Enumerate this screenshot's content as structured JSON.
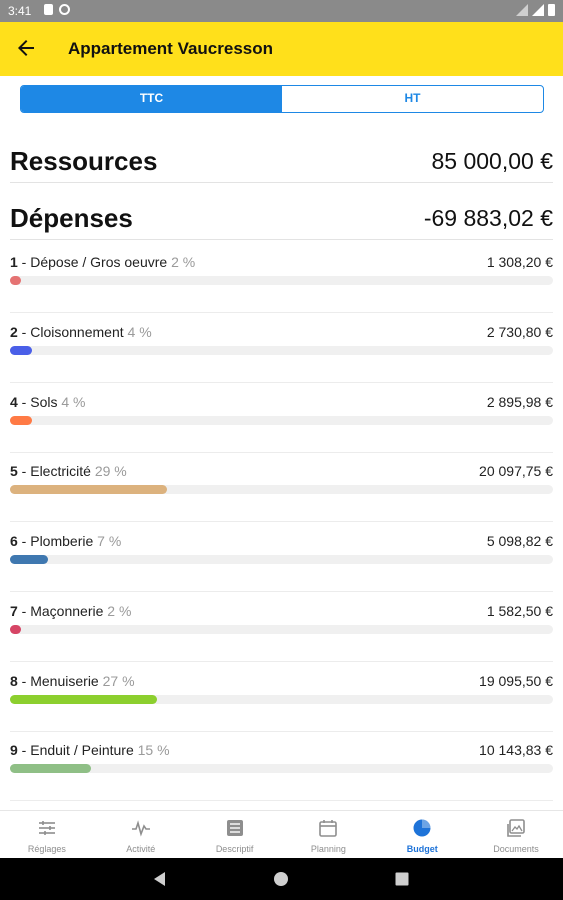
{
  "status_bar": {
    "time": "3:41"
  },
  "app_bar": {
    "title": "Appartement Vaucresson"
  },
  "tax_toggle": {
    "options": [
      "TTC",
      "HT"
    ],
    "selected": "TTC"
  },
  "summary": {
    "resources_label": "Ressources",
    "resources_value": "85 000,00 €",
    "expenses_label": "Dépenses",
    "expenses_value": "-69 883,02 €"
  },
  "categories": [
    {
      "num": "1",
      "name": " - Dépose / Gros oeuvre ",
      "pct": "2 %",
      "pct_value": 2,
      "amount": "1 308,20 €",
      "color": "#e57373"
    },
    {
      "num": "2",
      "name": " - Cloisonnement ",
      "pct": "4 %",
      "pct_value": 4,
      "amount": "2 730,80 €",
      "color": "#4a5fe8"
    },
    {
      "num": "4",
      "name": " - Sols ",
      "pct": "4 %",
      "pct_value": 4,
      "amount": "2 895,98 €",
      "color": "#ff7a45"
    },
    {
      "num": "5",
      "name": " - Electricité ",
      "pct": "29 %",
      "pct_value": 29,
      "amount": "20 097,75 €",
      "color": "#dcb27e"
    },
    {
      "num": "6",
      "name": " - Plomberie ",
      "pct": "7 %",
      "pct_value": 7,
      "amount": "5 098,82 €",
      "color": "#3f78b0"
    },
    {
      "num": "7",
      "name": " - Maçonnerie ",
      "pct": "2 %",
      "pct_value": 2,
      "amount": "1 582,50 €",
      "color": "#d64565"
    },
    {
      "num": "8",
      "name": " - Menuiserie ",
      "pct": "27 %",
      "pct_value": 27,
      "amount": "19 095,50 €",
      "color": "#8ccf2e"
    },
    {
      "num": "9",
      "name": " - Enduit / Peinture ",
      "pct": "15 %",
      "pct_value": 15,
      "amount": "10 143,83 €",
      "color": "#8fbf86"
    }
  ],
  "bottom_nav": {
    "items": [
      {
        "label": "Réglages",
        "icon": "sliders-icon"
      },
      {
        "label": "Activité",
        "icon": "activity-icon"
      },
      {
        "label": "Descriptif",
        "icon": "list-icon"
      },
      {
        "label": "Planning",
        "icon": "calendar-icon"
      },
      {
        "label": "Budget",
        "icon": "pie-chart-icon"
      },
      {
        "label": "Documents",
        "icon": "images-icon"
      }
    ],
    "active": "Budget"
  },
  "colors": {
    "accent_yellow": "#ffe01b",
    "accent_blue": "#1e88e5"
  }
}
